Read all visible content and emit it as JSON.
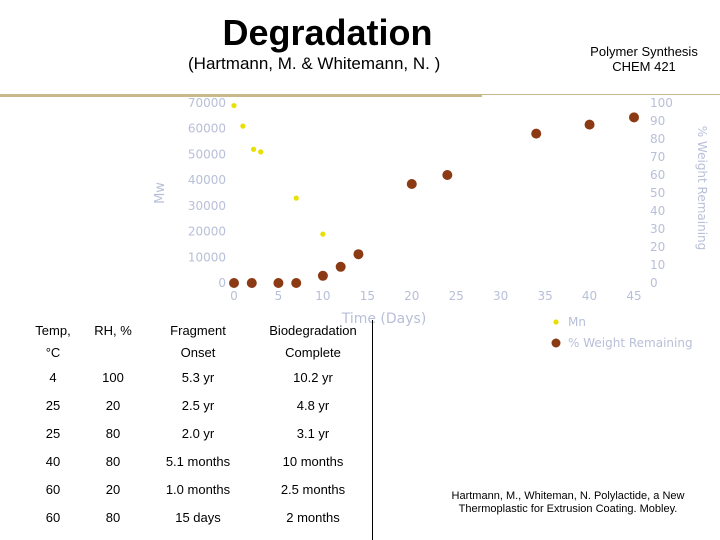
{
  "header": {
    "title": "Degradation",
    "subtitle": "(Hartmann, M. & Whitemann, N. )",
    "course_line1": "Polymer Synthesis",
    "course_line2": "CHEM 421"
  },
  "chart_data": {
    "type": "scatter",
    "title": "",
    "xlabel": "Time (Days)",
    "ylabel_left": "Mw",
    "ylabel_right": "% Weight Remaining",
    "x_ticks": [
      "0",
      "5",
      "10",
      "15",
      "20",
      "25",
      "30",
      "35",
      "40",
      "45"
    ],
    "y_left_ticks": [
      "0",
      "10000",
      "20000",
      "30000",
      "40000",
      "50000",
      "60000",
      "70000"
    ],
    "y_right_ticks": [
      "0",
      "10",
      "20",
      "30",
      "40",
      "50",
      "60",
      "70",
      "80",
      "90",
      "100"
    ],
    "xlim": [
      0,
      45
    ],
    "ylim_left": [
      0,
      70000
    ],
    "ylim_right": [
      0,
      100
    ],
    "series": [
      {
        "name": "Mn",
        "color": "#e8e000",
        "axis": "left",
        "x": [
          0,
          1,
          2.2,
          3,
          7,
          10,
          14
        ],
        "y": [
          69000,
          61000,
          52000,
          51000,
          33000,
          19000,
          12000
        ]
      },
      {
        "name": "% Weight Remaining",
        "color": "#8b3a14",
        "axis": "right",
        "x": [
          0,
          2,
          5,
          7,
          10,
          12,
          14,
          20,
          24,
          34,
          40,
          45
        ],
        "y": [
          0,
          0,
          0,
          0,
          4,
          9,
          16,
          55,
          60,
          83,
          88,
          92
        ]
      }
    ]
  },
  "table": {
    "headers_top": [
      "Temp,",
      "RH, %",
      "Fragment",
      "Biodegradation"
    ],
    "headers_sub": [
      "°C",
      "",
      "Onset",
      "Complete"
    ],
    "rows": [
      [
        "4",
        "100",
        "5.3 yr",
        "10.2 yr"
      ],
      [
        "25",
        "20",
        "2.5 yr",
        "4.8 yr"
      ],
      [
        "25",
        "80",
        "2.0 yr",
        "3.1 yr"
      ],
      [
        "40",
        "80",
        "5.1 months",
        "10 months"
      ],
      [
        "60",
        "20",
        "1.0 months",
        "2.5 months"
      ],
      [
        "60",
        "80",
        "15 days",
        "2 months"
      ]
    ]
  },
  "reference": "Hartmann, M., Whiteman, N. Polylactide, a New Thermoplastic for Extrusion Coating. Mobley."
}
